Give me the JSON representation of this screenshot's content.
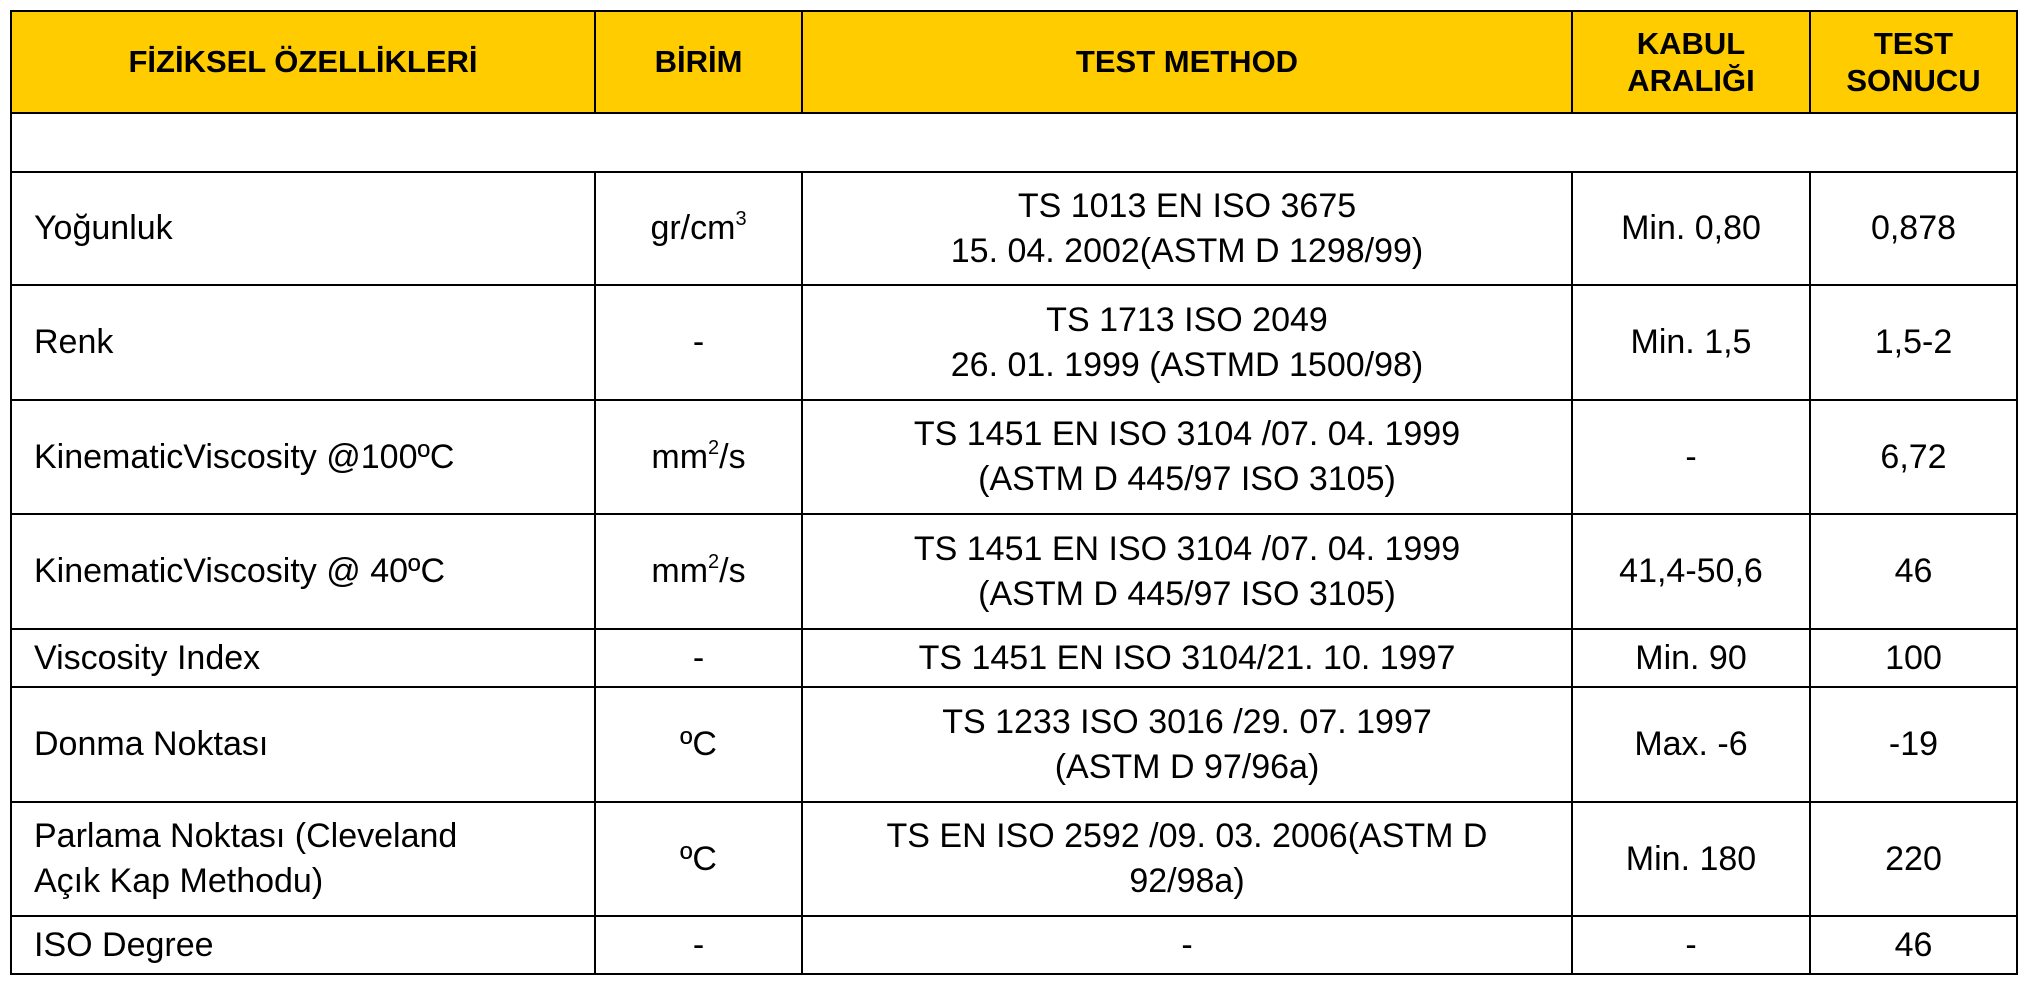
{
  "table": {
    "header": [
      [
        "FİZİKSEL ÖZELLİKLERİ"
      ],
      [
        "BİRİM"
      ],
      [
        "TEST METHOD"
      ],
      [
        "KABUL",
        "ARALIĞI"
      ],
      [
        "TEST",
        "SONUCU"
      ]
    ],
    "rows": [
      {
        "property": [
          "Yoğunluk"
        ],
        "unit": [
          {
            "text": "gr/cm"
          },
          {
            "text": "3",
            "sup": true
          }
        ],
        "method": [
          "TS 1013 EN ISO 3675",
          "15. 04. 2002(ASTM D 1298/99)"
        ],
        "range": [
          "Min. 0,80"
        ],
        "result": [
          "0,878"
        ]
      },
      {
        "property": [
          "Renk"
        ],
        "unit": [
          {
            "text": "-"
          }
        ],
        "method": [
          "TS 1713 ISO 2049",
          "26. 01. 1999 (ASTMD 1500/98)"
        ],
        "range": [
          "Min. 1,5"
        ],
        "result": [
          "1,5-2"
        ]
      },
      {
        "property": [
          "KinematicViscosity @100ºC"
        ],
        "unit": [
          {
            "text": "mm"
          },
          {
            "text": "2",
            "sup": true
          },
          {
            "text": "/s"
          }
        ],
        "method": [
          "TS 1451 EN ISO 3104 /07. 04. 1999",
          "(ASTM D 445/97 ISO 3105)"
        ],
        "range": [
          "-"
        ],
        "result": [
          "6,72"
        ]
      },
      {
        "property": [
          "KinematicViscosity @ 40ºC"
        ],
        "unit": [
          {
            "text": "mm"
          },
          {
            "text": "2",
            "sup": true
          },
          {
            "text": "/s"
          }
        ],
        "method": [
          "TS 1451 EN ISO 3104 /07. 04. 1999",
          "(ASTM D 445/97 ISO 3105)"
        ],
        "range": [
          "41,4-50,6"
        ],
        "result": [
          "46"
        ]
      },
      {
        "property": [
          "Viscosity Index"
        ],
        "unit": [
          {
            "text": "-"
          }
        ],
        "method": [
          "TS 1451 EN ISO 3104/21. 10. 1997"
        ],
        "range": [
          "Min. 90"
        ],
        "result": [
          "100"
        ]
      },
      {
        "property": [
          "Donma Noktası"
        ],
        "unit": [
          {
            "text": "ºC"
          }
        ],
        "method": [
          "TS 1233 ISO 3016 /29. 07. 1997",
          "(ASTM D 97/96a)"
        ],
        "range": [
          "Max. -6"
        ],
        "result": [
          "-19"
        ]
      },
      {
        "property": [
          "Parlama Noktası (Cleveland",
          "Açık Kap Methodu)"
        ],
        "unit": [
          {
            "text": "ºC"
          }
        ],
        "method": [
          "TS EN ISO 2592 /09. 03. 2006(ASTM D",
          "92/98a)"
        ],
        "range": [
          "Min. 180"
        ],
        "result": [
          "220"
        ]
      },
      {
        "property": [
          "ISO Degree"
        ],
        "unit": [
          {
            "text": "-"
          }
        ],
        "method": [
          "-"
        ],
        "range": [
          "-"
        ],
        "result": [
          "46"
        ]
      }
    ]
  }
}
